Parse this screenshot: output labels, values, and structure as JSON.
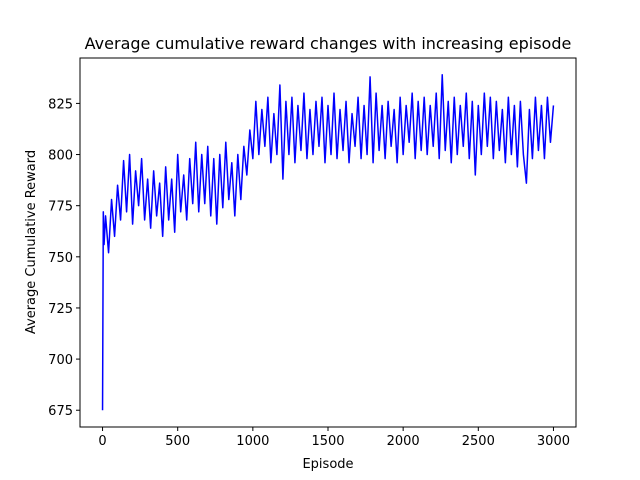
{
  "chart_data": {
    "type": "line",
    "title": "Average cumulative reward changes with increasing episode",
    "x_label": "Episode",
    "y_label": "Average Cumulative Reward",
    "color": "#0000ff",
    "x": [
      0,
      5,
      10,
      20,
      40,
      60,
      80,
      100,
      120,
      140,
      160,
      180,
      200,
      220,
      240,
      260,
      280,
      300,
      320,
      340,
      360,
      380,
      400,
      420,
      440,
      460,
      480,
      500,
      520,
      540,
      560,
      580,
      600,
      620,
      640,
      660,
      680,
      700,
      720,
      740,
      760,
      780,
      800,
      820,
      840,
      860,
      880,
      900,
      920,
      940,
      960,
      980,
      1000,
      1020,
      1040,
      1060,
      1080,
      1100,
      1120,
      1140,
      1160,
      1180,
      1200,
      1220,
      1240,
      1260,
      1280,
      1300,
      1320,
      1340,
      1360,
      1380,
      1400,
      1420,
      1440,
      1460,
      1480,
      1500,
      1520,
      1540,
      1560,
      1580,
      1600,
      1620,
      1640,
      1660,
      1680,
      1700,
      1720,
      1740,
      1760,
      1780,
      1800,
      1820,
      1840,
      1860,
      1880,
      1900,
      1920,
      1940,
      1960,
      1980,
      2000,
      2020,
      2040,
      2060,
      2080,
      2100,
      2120,
      2140,
      2160,
      2180,
      2200,
      2220,
      2240,
      2260,
      2280,
      2300,
      2320,
      2340,
      2360,
      2380,
      2400,
      2420,
      2440,
      2460,
      2480,
      2500,
      2520,
      2540,
      2560,
      2580,
      2600,
      2620,
      2640,
      2660,
      2680,
      2700,
      2720,
      2740,
      2760,
      2780,
      2800,
      2820,
      2840,
      2860,
      2880,
      2900,
      2920,
      2940,
      2960,
      2980,
      3000
    ],
    "values": [
      675,
      772,
      756,
      770,
      752,
      778,
      760,
      785,
      768,
      797,
      772,
      800,
      766,
      792,
      775,
      798,
      768,
      788,
      764,
      792,
      770,
      786,
      760,
      794,
      768,
      788,
      762,
      800,
      772,
      790,
      768,
      798,
      776,
      806,
      772,
      800,
      776,
      804,
      770,
      798,
      766,
      800,
      774,
      806,
      778,
      796,
      770,
      800,
      778,
      804,
      790,
      812,
      798,
      826,
      800,
      822,
      804,
      828,
      796,
      820,
      800,
      834,
      788,
      826,
      800,
      828,
      796,
      824,
      802,
      830,
      798,
      822,
      800,
      826,
      804,
      828,
      796,
      824,
      800,
      830,
      798,
      822,
      802,
      826,
      796,
      820,
      804,
      828,
      798,
      824,
      800,
      838,
      796,
      830,
      802,
      824,
      798,
      826,
      804,
      822,
      796,
      828,
      800,
      824,
      806,
      830,
      798,
      826,
      802,
      828,
      800,
      824,
      804,
      830,
      798,
      839,
      802,
      826,
      796,
      828,
      800,
      824,
      804,
      830,
      798,
      826,
      790,
      824,
      800,
      830,
      804,
      828,
      798,
      826,
      802,
      822,
      796,
      828,
      800,
      824,
      794,
      826,
      800,
      786,
      822,
      798,
      828,
      802,
      824,
      798,
      828,
      806,
      824
    ],
    "xlim": [
      -150,
      3150
    ],
    "ylim": [
      666.8,
      847.2
    ],
    "xticks": [
      0,
      500,
      1000,
      1500,
      2000,
      2500,
      3000
    ],
    "yticks": [
      675,
      700,
      725,
      750,
      775,
      800,
      825
    ]
  }
}
